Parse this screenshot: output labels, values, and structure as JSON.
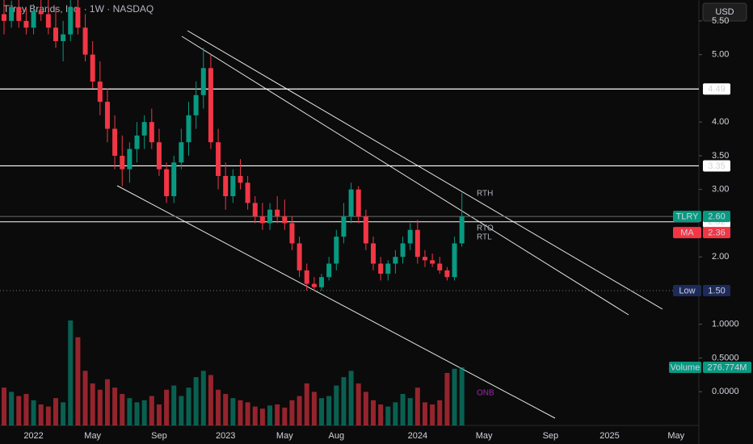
{
  "chart_data": {
    "type": "candlestick",
    "title": "Tilray Brands, Inc. · 1W · NASDAQ",
    "currency": "USD",
    "categories": [
      null,
      null,
      null,
      null,
      "2022",
      null,
      null,
      null,
      null,
      null,
      null,
      null,
      "May",
      null,
      null,
      null,
      null,
      null,
      null,
      null,
      null,
      "Sep",
      null,
      null,
      null,
      null,
      null,
      null,
      null,
      null,
      "2023",
      null,
      null,
      null,
      null,
      null,
      null,
      null,
      "May",
      null,
      null,
      null,
      null,
      null,
      null,
      "Aug",
      null,
      null,
      null,
      null,
      null,
      null,
      null,
      null,
      null,
      null,
      "2024",
      null,
      null,
      null,
      null,
      null,
      null,
      null,
      null,
      "May",
      null,
      null,
      null,
      null,
      null,
      null,
      null,
      null,
      "Sep",
      null,
      null,
      null,
      null,
      null,
      null,
      null,
      "2025",
      null,
      null,
      null,
      null,
      null,
      null,
      null,
      null,
      "May"
    ],
    "series": {
      "up_color": "#089981",
      "down_color": "#f23645",
      "open": [
        5.6,
        5.5,
        5.7,
        5.5,
        5.4,
        5.65,
        5.6,
        5.4,
        5.2,
        5.3,
        5.7,
        5.4,
        5.0,
        4.6,
        4.3,
        3.9,
        3.5,
        3.3,
        3.6,
        3.8,
        4.0,
        3.7,
        3.3,
        2.9,
        3.4,
        3.7,
        4.1,
        4.4,
        4.8,
        3.7,
        3.2,
        2.9,
        3.2,
        3.1,
        2.8,
        2.6,
        2.5,
        2.7,
        2.6,
        2.5,
        2.2,
        1.8,
        1.6,
        1.55,
        1.7,
        1.9,
        2.3,
        2.6,
        3.0,
        2.6,
        2.2,
        1.9,
        1.75,
        1.9,
        2.0,
        2.2,
        2.4,
        2.0,
        1.95,
        1.9,
        1.8,
        1.7,
        2.2,
        null,
        null,
        null,
        null,
        null,
        null,
        null,
        null,
        null,
        null,
        null,
        null,
        null,
        null,
        null,
        null,
        null,
        null,
        null,
        null,
        null,
        null,
        null,
        null,
        null,
        null,
        null,
        null,
        null
      ],
      "high": [
        5.81,
        5.8,
        5.81,
        5.7,
        5.75,
        5.81,
        5.81,
        5.7,
        5.5,
        5.81,
        5.81,
        5.6,
        5.2,
        4.9,
        4.5,
        4.1,
        3.8,
        3.7,
        4.0,
        4.1,
        4.2,
        3.9,
        3.4,
        3.5,
        3.9,
        4.3,
        4.6,
        5.1,
        5.0,
        3.9,
        3.4,
        3.3,
        3.45,
        3.2,
        2.9,
        2.8,
        2.8,
        2.9,
        2.85,
        2.6,
        2.3,
        1.9,
        1.7,
        1.75,
        2.0,
        2.4,
        2.8,
        3.1,
        3.05,
        2.7,
        2.3,
        2.0,
        1.95,
        2.1,
        2.3,
        2.5,
        2.55,
        2.1,
        2.05,
        2.0,
        1.85,
        2.3,
        2.95,
        null,
        null,
        null,
        null,
        null,
        null,
        null,
        null,
        null,
        null,
        null,
        null,
        null,
        null,
        null,
        null,
        null,
        null,
        null,
        null,
        null,
        null,
        null,
        null,
        null,
        null,
        null,
        null,
        null
      ],
      "low": [
        5.3,
        5.4,
        5.4,
        5.3,
        5.3,
        5.5,
        5.3,
        5.1,
        4.9,
        5.2,
        5.3,
        4.9,
        4.5,
        4.1,
        3.7,
        3.3,
        3.05,
        3.1,
        3.4,
        3.6,
        3.6,
        3.2,
        2.8,
        2.8,
        3.3,
        3.5,
        3.9,
        4.2,
        3.6,
        3.0,
        2.7,
        2.8,
        3.0,
        2.7,
        2.5,
        2.4,
        2.4,
        2.5,
        2.4,
        2.1,
        1.7,
        1.5,
        1.5,
        1.5,
        1.65,
        1.8,
        2.2,
        2.5,
        2.5,
        2.1,
        1.8,
        1.65,
        1.65,
        1.75,
        1.9,
        2.1,
        1.9,
        1.85,
        1.85,
        1.75,
        1.65,
        1.65,
        2.15,
        null,
        null,
        null,
        null,
        null,
        null,
        null,
        null,
        null,
        null,
        null,
        null,
        null,
        null,
        null,
        null,
        null,
        null,
        null,
        null,
        null,
        null,
        null,
        null,
        null,
        null,
        null,
        null,
        null
      ],
      "close": [
        5.5,
        5.7,
        5.5,
        5.4,
        5.65,
        5.6,
        5.4,
        5.2,
        5.3,
        5.7,
        5.4,
        5.0,
        4.6,
        4.3,
        3.9,
        3.5,
        3.3,
        3.6,
        3.8,
        4.0,
        3.7,
        3.3,
        2.9,
        3.4,
        3.7,
        4.1,
        4.4,
        4.8,
        3.7,
        3.2,
        2.9,
        3.2,
        3.1,
        2.8,
        2.6,
        2.5,
        2.7,
        2.6,
        2.5,
        2.2,
        1.8,
        1.6,
        1.55,
        1.7,
        1.9,
        2.3,
        2.6,
        3.0,
        2.6,
        2.2,
        1.9,
        1.75,
        1.9,
        2.0,
        2.2,
        2.4,
        2.0,
        1.95,
        1.9,
        1.8,
        1.7,
        2.2,
        2.6,
        null,
        null,
        null,
        null,
        null,
        null,
        null,
        null,
        null,
        null,
        null,
        null,
        null,
        null,
        null,
        null,
        null,
        null,
        null,
        null,
        null,
        null,
        null,
        null,
        null,
        null,
        null,
        null,
        null
      ]
    },
    "volume": {
      "name": "Volume",
      "values": [
        180,
        160,
        140,
        150,
        120,
        100,
        90,
        130,
        110,
        500,
        420,
        260,
        200,
        170,
        220,
        180,
        150,
        130,
        110,
        120,
        140,
        100,
        170,
        190,
        140,
        180,
        230,
        260,
        240,
        170,
        150,
        130,
        120,
        110,
        90,
        80,
        95,
        100,
        85,
        120,
        140,
        200,
        160,
        130,
        140,
        190,
        230,
        260,
        200,
        160,
        120,
        100,
        90,
        110,
        150,
        130,
        180,
        110,
        100,
        120,
        250,
        270,
        276.774,
        null,
        null,
        null,
        null,
        null,
        null,
        null,
        null,
        null,
        null,
        null,
        null,
        null,
        null,
        null,
        null,
        null,
        null,
        null,
        null,
        null,
        null,
        null,
        null,
        null,
        null,
        null,
        null,
        null
      ],
      "last": 276.774,
      "last_label": "276.774M"
    },
    "ylim": [
      -0.5,
      5.81
    ],
    "y2lim": [
      0,
      2026
    ],
    "yticks": [
      {
        "value": 5.5,
        "label": "5.50"
      },
      {
        "value": 5,
        "label": "5.00"
      },
      {
        "value": 4,
        "label": "4.00"
      },
      {
        "value": 3.5,
        "label": "3.50"
      },
      {
        "value": 3,
        "label": "3.00"
      },
      {
        "value": 2,
        "label": "2.00"
      },
      {
        "value": 1,
        "label": "1.0000"
      },
      {
        "value": 0.5,
        "label": "0.5000"
      },
      {
        "value": 0,
        "label": "0.0000"
      }
    ],
    "price_lines": [
      {
        "value": 4.49
      },
      {
        "value": 3.35
      },
      {
        "value": 2.52
      },
      {
        "name": "TLRY",
        "value": 2.6,
        "label": "2.60",
        "color": "#089981"
      },
      {
        "name": "MA",
        "value": 2.36,
        "color": "#f23645"
      },
      {
        "name": "Low",
        "value": 1.5,
        "label": "1.50",
        "color": "#1e2a5a"
      }
    ],
    "annotations": [
      {
        "text": "RTH",
        "color": "#b2b5be"
      },
      {
        "text": "RTO",
        "color": "#b2b5be"
      },
      {
        "text": "RTL",
        "color": "#b2b5be"
      },
      {
        "text": "ONB",
        "color": "#9c27b0"
      }
    ]
  }
}
